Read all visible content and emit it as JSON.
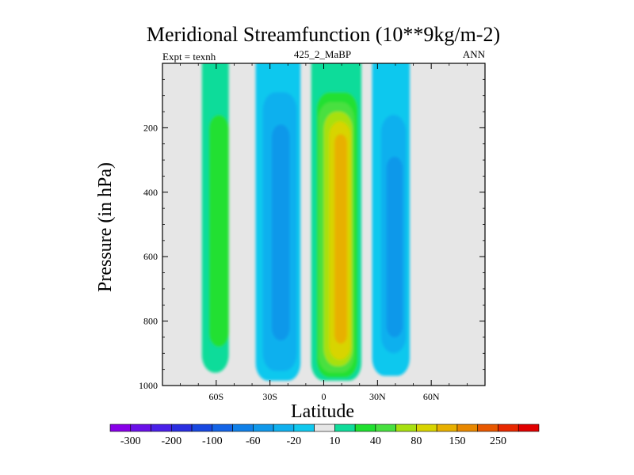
{
  "chart_data": {
    "type": "heatmap",
    "subtype": "filled-contour",
    "title": "Meridional Streamfunction (10**9kg/m-2)",
    "left_annotation": "Expt = texnh",
    "center_annotation": "425_2_MaBP",
    "right_annotation": "ANN",
    "xlabel": "Latitude",
    "ylabel": "Pressure (in hPa)",
    "xlim": [
      -90,
      90
    ],
    "ylim": [
      1000,
      0
    ],
    "xticks": [
      {
        "value": -60,
        "label": "60S"
      },
      {
        "value": -30,
        "label": "30S"
      },
      {
        "value": 0,
        "label": "0"
      },
      {
        "value": 30,
        "label": "30N"
      },
      {
        "value": 60,
        "label": "60N"
      }
    ],
    "yticks": [
      200,
      400,
      600,
      800,
      1000
    ],
    "missing_color": "#e6e6e6",
    "levels": [
      -300,
      -250,
      -200,
      -150,
      -100,
      -80,
      -60,
      -40,
      -20,
      -10,
      10,
      20,
      40,
      60,
      80,
      100,
      150,
      200,
      250,
      300
    ],
    "colorbar_labels": [
      {
        "boundary": 1,
        "label": "-300"
      },
      {
        "boundary": 3,
        "label": "-200"
      },
      {
        "boundary": 5,
        "label": "-100"
      },
      {
        "boundary": 7,
        "label": "-60"
      },
      {
        "boundary": 9,
        "label": "-20"
      },
      {
        "boundary": 11,
        "label": "10"
      },
      {
        "boundary": 13,
        "label": "40"
      },
      {
        "boundary": 15,
        "label": "80"
      },
      {
        "boundary": 17,
        "label": "150"
      },
      {
        "boundary": 19,
        "label": "250"
      }
    ],
    "colors": [
      "#8800e8",
      "#6a10e8",
      "#4a20e8",
      "#2a2ee0",
      "#1848e0",
      "#1464e6",
      "#1080e8",
      "#1098ea",
      "#10b0ee",
      "#10c8ee",
      "#e6e6e6",
      "#10dc9a",
      "#20e030",
      "#48e040",
      "#a8e010",
      "#d8d400",
      "#e8b000",
      "#e88800",
      "#e85800",
      "#e82800",
      "#e00000"
    ],
    "cells": [
      {
        "name": "sh-subpolar-outer",
        "lat": [
          -68,
          -53
        ],
        "p": [
          0,
          960
        ],
        "band": 11
      },
      {
        "name": "sh-subpolar-core",
        "lat": [
          -64,
          -53
        ],
        "p": [
          160,
          880
        ],
        "band": 12
      },
      {
        "name": "sh-ferrel-outer",
        "lat": [
          -38,
          -13
        ],
        "p": [
          0,
          985
        ],
        "band": 9
      },
      {
        "name": "sh-ferrel-mid",
        "lat": [
          -34,
          -15
        ],
        "p": [
          90,
          955
        ],
        "band": 8
      },
      {
        "name": "sh-ferrel-core",
        "lat": [
          -29,
          -19
        ],
        "p": [
          190,
          860
        ],
        "band": 7
      },
      {
        "name": "hadley-outer",
        "lat": [
          -7,
          21
        ],
        "p": [
          0,
          985
        ],
        "band": 11
      },
      {
        "name": "hadley-1",
        "lat": [
          -4,
          19
        ],
        "p": [
          90,
          975
        ],
        "band": 12
      },
      {
        "name": "hadley-2",
        "lat": [
          -3,
          17
        ],
        "p": [
          120,
          960
        ],
        "band": 13
      },
      {
        "name": "hadley-3",
        "lat": [
          0,
          16
        ],
        "p": [
          150,
          940
        ],
        "band": 14
      },
      {
        "name": "hadley-4",
        "lat": [
          3,
          15
        ],
        "p": [
          180,
          920
        ],
        "band": 15
      },
      {
        "name": "hadley-core",
        "lat": [
          6,
          13
        ],
        "p": [
          220,
          870
        ],
        "band": 16
      },
      {
        "name": "nh-ferrel-outer",
        "lat": [
          27,
          48
        ],
        "p": [
          0,
          970
        ],
        "band": 9
      },
      {
        "name": "nh-ferrel-core",
        "lat": [
          32,
          46
        ],
        "p": [
          160,
          900
        ],
        "band": 8
      },
      {
        "name": "nh-ferrel-inner",
        "lat": [
          35,
          44
        ],
        "p": [
          290,
          850
        ],
        "band": 7
      }
    ]
  }
}
